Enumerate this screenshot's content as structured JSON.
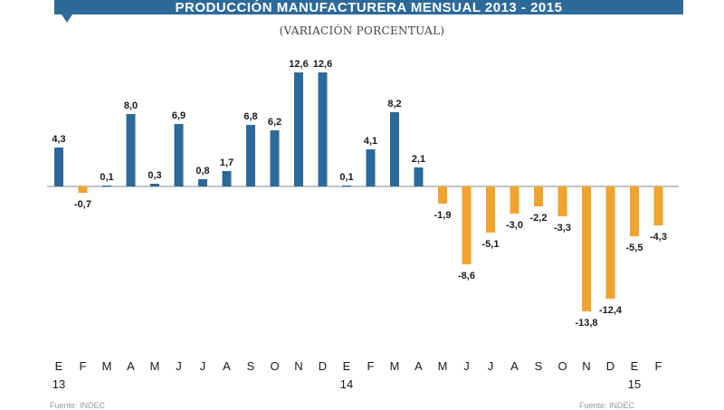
{
  "banner": {
    "title": "PRODUCCIÓN MANUFACTURERA MENSUAL 2013 - 2015",
    "color": "#2d6a9a"
  },
  "subtitle": "(VARIACIÓN PORCENTUAL)",
  "footer": {
    "left": "Fuente: INDEC",
    "right": "Fuente: INDEC"
  },
  "chart_data": {
    "type": "bar",
    "categories": [
      "E",
      "F",
      "M",
      "A",
      "M",
      "J",
      "J",
      "A",
      "S",
      "O",
      "N",
      "D",
      "E",
      "F",
      "M",
      "A",
      "M",
      "J",
      "J",
      "A",
      "S",
      "O",
      "N",
      "D",
      "E",
      "F"
    ],
    "year_labels": [
      {
        "index": 0,
        "label": "13"
      },
      {
        "index": 12,
        "label": "14"
      },
      {
        "index": 24,
        "label": "15"
      }
    ],
    "values": [
      4.3,
      -0.7,
      0.1,
      8.0,
      0.3,
      6.9,
      0.8,
      1.7,
      6.8,
      6.2,
      12.6,
      12.6,
      0.1,
      4.1,
      8.2,
      2.1,
      -1.9,
      -8.6,
      -5.1,
      -3.0,
      -2.2,
      -3.3,
      -13.8,
      -12.4,
      -5.5,
      -4.3
    ],
    "value_labels": [
      "4,3",
      "-0,7",
      "0,1",
      "8,0",
      "0,3",
      "6,9",
      "0,8",
      "1,7",
      "6,8",
      "6,2",
      "12,6",
      "12,6",
      "0,1",
      "4,1",
      "8,2",
      "2,1",
      "-1,9",
      "-8,6",
      "-5,1",
      "-3,0",
      "-2,2",
      "-3,3",
      "-13,8",
      "-12,4",
      "-5,5",
      "-4,3"
    ],
    "ylim": [
      -15,
      14
    ],
    "grid": false,
    "title": "PRODUCCIÓN MANUFACTURERA MENSUAL 2013 - 2015",
    "subtitle": "(VARIACIÓN PORCENTUAL)",
    "xlabel": "",
    "ylabel": "",
    "colors": {
      "positive": "#2d6a9a",
      "negative": "#f2a32b",
      "baseline": "#888888",
      "label": "#1a1a1a"
    }
  }
}
